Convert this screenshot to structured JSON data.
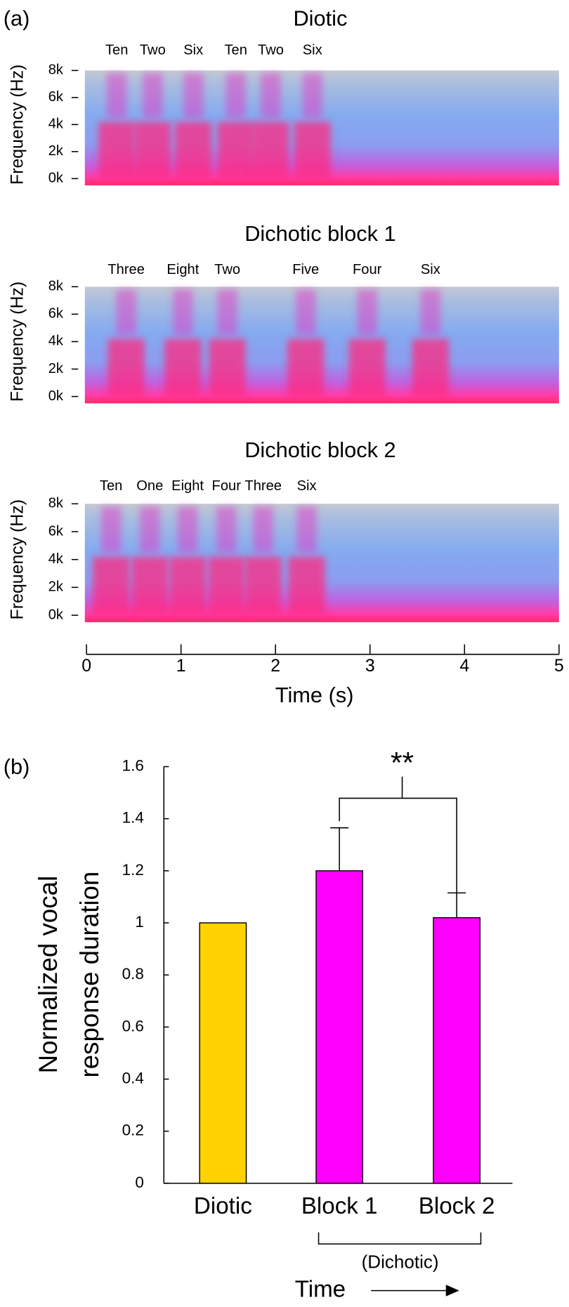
{
  "panel_labels": [
    "(a)",
    "(b)"
  ],
  "chart_data": [
    {
      "type": "spectrogram",
      "title": "Diotic",
      "ylabel": "Frequency (Hz)",
      "ylim": [
        -500,
        8000
      ],
      "yticks": [
        {
          "value": 0,
          "label": "0k"
        },
        {
          "value": 2000,
          "label": "2k"
        },
        {
          "value": 4000,
          "label": "4k"
        },
        {
          "value": 6000,
          "label": "6k"
        },
        {
          "value": 8000,
          "label": "8k"
        }
      ],
      "xlim": [
        0,
        5
      ],
      "words": [
        {
          "label": "Ten",
          "t": 0.32
        },
        {
          "label": "Two",
          "t": 0.7
        },
        {
          "label": "Six",
          "t": 1.13
        },
        {
          "label": "Ten",
          "t": 1.58
        },
        {
          "label": "Two",
          "t": 1.95
        },
        {
          "label": "Six",
          "t": 2.39
        }
      ]
    },
    {
      "type": "spectrogram",
      "title": "Dichotic block 1",
      "ylabel": "Frequency (Hz)",
      "ylim": [
        -500,
        8000
      ],
      "yticks": [
        {
          "value": 0,
          "label": "0k"
        },
        {
          "value": 2000,
          "label": "2k"
        },
        {
          "value": 4000,
          "label": "4k"
        },
        {
          "value": 6000,
          "label": "6k"
        },
        {
          "value": 8000,
          "label": "8k"
        }
      ],
      "xlim": [
        0,
        5
      ],
      "words": [
        {
          "label": "Three",
          "t": 0.42
        },
        {
          "label": "Eight",
          "t": 1.02
        },
        {
          "label": "Two",
          "t": 1.49
        },
        {
          "label": "Five",
          "t": 2.32
        },
        {
          "label": "Four",
          "t": 2.97
        },
        {
          "label": "Six",
          "t": 3.64
        }
      ]
    },
    {
      "type": "spectrogram",
      "title": "Dichotic block 2",
      "ylabel": "Frequency (Hz)",
      "ylim": [
        -500,
        8000
      ],
      "yticks": [
        {
          "value": 0,
          "label": "0k"
        },
        {
          "value": 2000,
          "label": "2k"
        },
        {
          "value": 4000,
          "label": "4k"
        },
        {
          "value": 6000,
          "label": "6k"
        },
        {
          "value": 8000,
          "label": "8k"
        }
      ],
      "xlim": [
        0,
        5
      ],
      "xticks": [
        0,
        1,
        2,
        3,
        4,
        5
      ],
      "xlabel": "Time (s)",
      "words": [
        {
          "label": "Ten",
          "t": 0.26
        },
        {
          "label": "One",
          "t": 0.67
        },
        {
          "label": "Eight",
          "t": 1.07
        },
        {
          "label": "Four",
          "t": 1.48
        },
        {
          "label": "Three",
          "t": 1.87
        },
        {
          "label": "Six",
          "t": 2.33
        }
      ]
    },
    {
      "type": "bar",
      "ylabel": [
        "Normalized vocal",
        "response duration"
      ],
      "categories": [
        "Diotic",
        "Block 1",
        "Block 2"
      ],
      "values": [
        1,
        1.2,
        1.02
      ],
      "errors": [
        null,
        0.165,
        0.095
      ],
      "colors": [
        "#ffd200",
        "#ff00ff",
        "#ff00ff"
      ],
      "ylim": [
        0,
        1.6
      ],
      "yticks": [
        0,
        0.2,
        0.4,
        0.6,
        0.8,
        1,
        1.2,
        1.4,
        1.6
      ],
      "significance": "**",
      "group_label": "(Dichotic)",
      "time_label": "Time"
    }
  ]
}
